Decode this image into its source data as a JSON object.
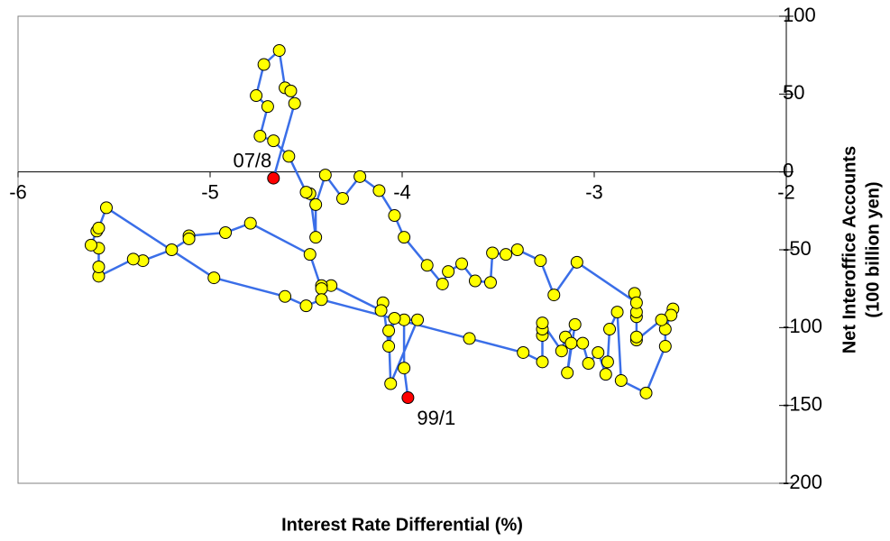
{
  "chart_data": {
    "type": "connected-scatter",
    "xlabel": "Interest Rate Differential (%)",
    "ylabel": [
      "Net Interoffice Accounts",
      "(100 billion yen)"
    ],
    "x": [
      -3.97,
      -3.99,
      -3.99,
      -3.92,
      -4.06,
      -4.07,
      -4.04,
      -4.07,
      -4.1,
      -4.11,
      -4.37,
      -4.42,
      -4.42,
      -4.48,
      -4.79,
      -4.92,
      -5.11,
      -5.11,
      -5.2,
      -5.35,
      -5.4,
      -5.58,
      -5.58,
      -5.58,
      -5.62,
      -5.59,
      -5.58,
      -5.54,
      -4.98,
      -4.61,
      -4.5,
      -4.42,
      -3.65,
      -3.37,
      -3.27,
      -3.27,
      -3.27,
      -3.27,
      -3.17,
      -3.15,
      -3.1,
      -3.14,
      -3.12,
      -3.06,
      -3.03,
      -2.98,
      -2.94,
      -2.93,
      -2.92,
      -2.88,
      -2.86,
      -2.73,
      -2.63,
      -2.63,
      -2.59,
      -2.6,
      -2.65,
      -2.78,
      -2.78,
      -2.78,
      -2.78,
      -2.79,
      -2.78,
      -3.09,
      -3.21,
      -3.28,
      -3.4,
      -3.46,
      -3.53,
      -3.54,
      -3.62,
      -3.69,
      -3.76,
      -3.79,
      -3.87,
      -3.99,
      -4.04,
      -4.12,
      -4.22,
      -4.31,
      -4.4,
      -4.45,
      -4.45,
      -4.48,
      -4.5,
      -4.59,
      -4.67,
      -4.74,
      -4.7,
      -4.76,
      -4.72,
      -4.64,
      -4.61,
      -4.58,
      -4.56,
      -4.67
    ],
    "y": [
      -145,
      -126,
      -95,
      -95,
      -136,
      -102,
      -94,
      -112,
      -84,
      -89,
      -73,
      -73,
      -75,
      -53,
      -33,
      -39,
      -41,
      -43,
      -50,
      -57,
      -56,
      -67,
      -61,
      -49,
      -47,
      -38,
      -36,
      -23,
      -68,
      -80,
      -86,
      -82,
      -107,
      -116,
      -122,
      -105,
      -101,
      -97,
      -115,
      -106,
      -98,
      -129,
      -110,
      -110,
      -123,
      -116,
      -130,
      -122,
      -101,
      -90,
      -134,
      -142,
      -112,
      -101,
      -88,
      -92,
      -95,
      -108,
      -106,
      -93,
      -90,
      -78,
      -84,
      -58,
      -79,
      -57,
      -50,
      -53,
      -52,
      -71,
      -70,
      -59,
      -64,
      -72,
      -60,
      -42,
      -28,
      -12,
      -3,
      -17,
      -2,
      -21,
      -42,
      -14,
      -13,
      10,
      20,
      23,
      42,
      49,
      69,
      78,
      54,
      52,
      44,
      -4
    ],
    "color": "#3a6ee8",
    "marker_color": "#ffff00",
    "highlight_color": "#ff0000",
    "annotations": [
      {
        "text": "99/1",
        "index": 0,
        "position": "below-right"
      },
      {
        "text": "07/8",
        "index": 95,
        "position": "above-left"
      }
    ],
    "xlim": [
      -6,
      -2
    ],
    "xticks": [
      -6,
      -5,
      -4,
      -3,
      -2
    ],
    "ylim": [
      -200,
      100
    ],
    "yticks": [
      100,
      50,
      0,
      -50,
      -100,
      -150,
      -200
    ]
  }
}
